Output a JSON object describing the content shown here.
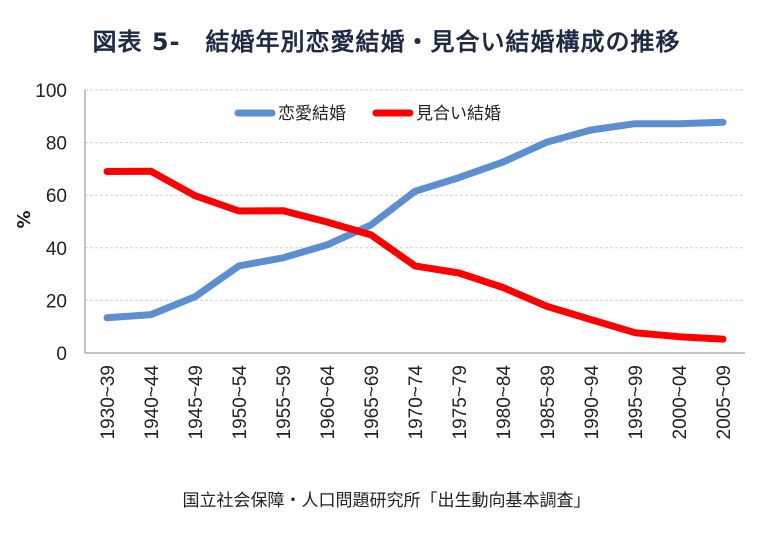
{
  "title": "図表 5-　結婚年別恋愛結婚・見合い結婚構成の推移",
  "source": "国立社会保障・人口問題研究所「出生動向基本調査」",
  "chart_data": {
    "type": "line",
    "categories": [
      "1930~39",
      "1940~44",
      "1945~49",
      "1950~54",
      "1955~59",
      "1960~64",
      "1965~69",
      "1970~74",
      "1975~79",
      "1980~84",
      "1985~89",
      "1990~94",
      "1995~99",
      "2000~04",
      "2005~09"
    ],
    "series": [
      {
        "name": "恋愛結婚",
        "color": "#5b8fd0",
        "values": [
          13.4,
          14.6,
          21.4,
          33.1,
          36.2,
          41.1,
          48.7,
          61.5,
          66.7,
          72.6,
          80.2,
          84.8,
          87.2,
          87.2,
          87.7
        ]
      },
      {
        "name": "見合い結婚",
        "color": "#ff0000",
        "values": [
          69.0,
          69.1,
          59.8,
          54.0,
          54.1,
          49.8,
          44.9,
          33.1,
          30.4,
          24.9,
          17.7,
          12.7,
          7.7,
          6.2,
          5.3
        ]
      }
    ],
    "xlabel": "",
    "ylabel": "%",
    "ylim": [
      0,
      100
    ],
    "yticks": [
      0,
      20,
      40,
      60,
      80,
      100
    ],
    "grid": true,
    "legend": "top-center"
  }
}
